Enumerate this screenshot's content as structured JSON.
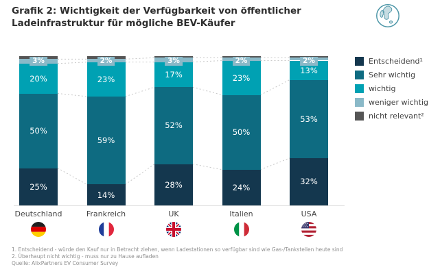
{
  "header": {
    "title": "Grafik 2: Wichtigkeit der Verfügbarkeit von öffentlicher Ladeinfrastruktur für mögliche BEV-Käufer"
  },
  "icons": {
    "globe": "globe-icon"
  },
  "colors": {
    "title_text": "#2e2e2e",
    "axis_line": "#dedede",
    "connector_line": "#c8c8c8",
    "label_text": "#444444",
    "footnote_text": "#8f8f8f"
  },
  "chart_data": {
    "type": "bar",
    "stacked": true,
    "percent_stacked": true,
    "value_unit": "%",
    "ylim": [
      0,
      100
    ],
    "grid": false,
    "legend_position": "right",
    "categories": [
      "Deutschland",
      "Frankreich",
      "UK",
      "Italien",
      "USA"
    ],
    "flags": [
      "germany",
      "france",
      "uk",
      "italy",
      "usa"
    ],
    "series": [
      {
        "name": "Entscheidend¹",
        "color": "#14374e",
        "values": [
          25,
          14,
          28,
          24,
          32
        ],
        "label_style": "inside"
      },
      {
        "name": "Sehr wichtig",
        "color": "#0e6b81",
        "values": [
          50,
          59,
          52,
          50,
          53
        ],
        "label_style": "inside"
      },
      {
        "name": "wichtig",
        "color": "#00a1b3",
        "values": [
          20,
          23,
          17,
          23,
          13
        ],
        "label_style": "inside"
      },
      {
        "name": "weniger wichtig",
        "color": "#8ab9c8",
        "values": [
          3,
          2,
          3,
          2,
          2
        ],
        "label_style": "box"
      },
      {
        "name": "nicht relevant²",
        "color": "#555555",
        "values": [
          2,
          2,
          1,
          1,
          1
        ],
        "label_style": "none"
      }
    ]
  },
  "footnotes": [
    "1.  Entscheidend - würde den Kauf nur in Betracht ziehen, wenn Ladestationen so verfügbar sind wie Gas-/Tankstellen heute sind",
    "2.  Überhaupt nicht wichtig - muss nur zu Hause aufladen",
    "Quelle: AlixPartners EV Consumer Survey"
  ]
}
